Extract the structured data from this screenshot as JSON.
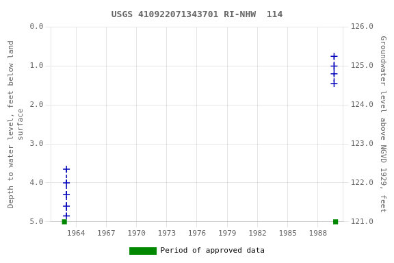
{
  "chart_data": {
    "type": "line",
    "title": "USGS 410922071343701 RI-NHW  114",
    "ylabel": "Depth to water level, feet below land\nsurface",
    "y2label": "Groundwater level above NGVD 1929, feet",
    "xlim": [
      1961.5,
      1990.5
    ],
    "xticks": [
      1964,
      1967,
      1970,
      1973,
      1976,
      1979,
      1982,
      1985,
      1988
    ],
    "ylim": [
      5.0,
      0.0
    ],
    "yticks": [
      {
        "value": 0.0,
        "label": "0.0"
      },
      {
        "value": 1.0,
        "label": "1.0"
      },
      {
        "value": 2.0,
        "label": "2.0"
      },
      {
        "value": 3.0,
        "label": "3.0"
      },
      {
        "value": 4.0,
        "label": "4.0"
      },
      {
        "value": 5.0,
        "label": "5.0"
      }
    ],
    "y2lim": [
      121.0,
      126.0
    ],
    "y2ticks": [
      {
        "value": 121.0,
        "label": "121.0"
      },
      {
        "value": 122.0,
        "label": "122.0"
      },
      {
        "value": 123.0,
        "label": "123.0"
      },
      {
        "value": 124.0,
        "label": "124.0"
      },
      {
        "value": 125.0,
        "label": "125.0"
      },
      {
        "value": 126.0,
        "label": "126.0"
      }
    ],
    "grid": true,
    "legend": "bottom",
    "series": [
      {
        "type": "line",
        "color": "#0000BB",
        "marker": "plus",
        "line_style": "dashed",
        "x": [
          1963.05,
          1963.05,
          1963.05,
          1963.05,
          1963.05
        ],
        "values": [
          3.65,
          4.0,
          4.3,
          4.6,
          4.85
        ]
      },
      {
        "type": "line",
        "color": "#0000BB",
        "marker": "plus",
        "line_style": "dashed",
        "x": [
          1989.6,
          1989.6,
          1989.6,
          1989.6
        ],
        "values": [
          0.75,
          1.0,
          1.2,
          1.45
        ]
      },
      {
        "name": "Period of approved data",
        "type": "scatter",
        "color": "#008800",
        "marker": "square",
        "x": [
          1962.85,
          1989.75
        ],
        "values": [
          5.0,
          5.0
        ]
      }
    ]
  }
}
